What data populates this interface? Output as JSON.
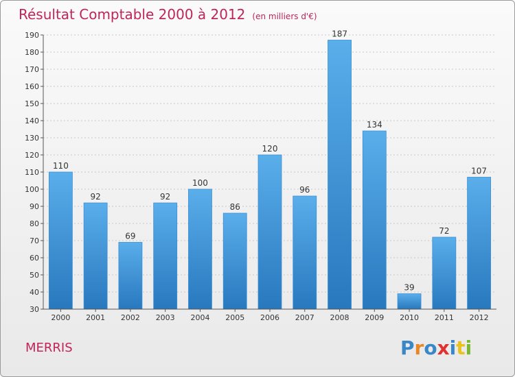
{
  "title": "Résultat Comptable 2000 à 2012",
  "subtitle": "(en milliers d'€)",
  "town": "MERRIS",
  "logo": {
    "letters": [
      "P",
      "r",
      "o",
      "x",
      "i",
      "t",
      "i"
    ],
    "colors": [
      "#3a87c8",
      "#e8872a",
      "#3a87c8",
      "#e23030",
      "#3a87c8",
      "#e8c21e",
      "#7ab733"
    ]
  },
  "colors": {
    "bar": "#3f9ae0",
    "accent": "#c0245a"
  },
  "chart_data": {
    "type": "bar",
    "title": "Résultat Comptable 2000 à 2012",
    "categories": [
      "2000",
      "2001",
      "2002",
      "2003",
      "2004",
      "2005",
      "2006",
      "2007",
      "2008",
      "2009",
      "2010",
      "2011",
      "2012"
    ],
    "values": [
      110,
      92,
      69,
      92,
      100,
      86,
      120,
      96,
      187,
      134,
      39,
      72,
      107
    ],
    "ylim": [
      30,
      190
    ],
    "yticks": [
      30,
      40,
      50,
      60,
      70,
      80,
      90,
      100,
      110,
      120,
      130,
      140,
      150,
      160,
      170,
      180,
      190
    ],
    "grid": true
  }
}
